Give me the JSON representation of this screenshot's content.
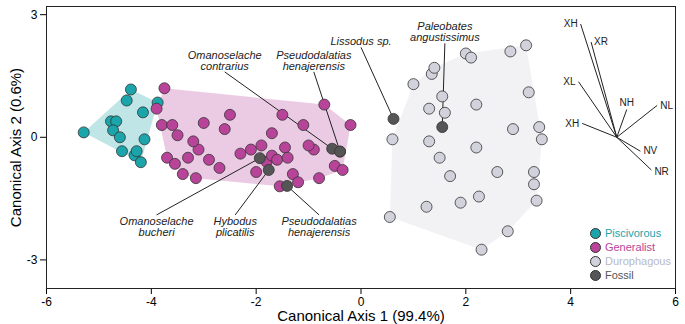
{
  "chart_data": {
    "type": "scatter",
    "xlabel": "Canonical Axis 1 (99.4%)",
    "ylabel": "Canonical Axis 2 (0.6%)",
    "xlim": [
      -6,
      6
    ],
    "ylim": [
      -3.7,
      3.2
    ],
    "xticks": [
      -6,
      -4,
      -2,
      0,
      2,
      4,
      6
    ],
    "yticks": [
      -3,
      0,
      3
    ],
    "legend": "bottom-right",
    "series": [
      {
        "name": "Piscivorous",
        "color": "#1ba4aa",
        "x": [
          -5.29,
          -4.77,
          -4.67,
          -4.73,
          -4.6,
          -4.56,
          -4.32,
          -4.2,
          -4.13,
          -4.16,
          -4.47,
          -4.39,
          -3.88,
          -4.28
        ],
        "y": [
          0.12,
          0.39,
          0.39,
          0.17,
          0.0,
          -0.34,
          -0.44,
          -0.61,
          -0.05,
          0.61,
          0.9,
          1.17,
          0.85,
          -0.34
        ]
      },
      {
        "name": "Generalist",
        "color": "#b8449a",
        "x": [
          -3.75,
          -3.9,
          -3.8,
          -3.6,
          -3.5,
          -3.7,
          -3.55,
          -3.3,
          -3.1,
          -3.15,
          -3.4,
          -3.2,
          -3.0,
          -2.9,
          -2.7,
          -2.6,
          -2.5,
          -2.3,
          -2.1,
          -1.9,
          -2.0,
          -1.8,
          -1.7,
          -1.6,
          -1.55,
          -1.45,
          -1.4,
          -1.3,
          -1.2,
          -1.5,
          -1.7,
          -1.1,
          -0.9,
          -0.8,
          -0.7,
          -0.5,
          -0.4,
          -0.2,
          -0.35,
          -1.0
        ],
        "y": [
          1.2,
          0.7,
          0.3,
          0.3,
          0.05,
          -0.5,
          -0.65,
          -0.5,
          -0.3,
          -1.0,
          -0.9,
          -0.1,
          0.35,
          -0.55,
          -0.75,
          0.2,
          0.55,
          -0.4,
          -0.3,
          -0.2,
          -0.85,
          -0.6,
          -0.45,
          -0.55,
          -1.2,
          -0.25,
          -0.5,
          -0.9,
          -1.1,
          0.55,
          0.1,
          0.3,
          -0.3,
          -1.0,
          0.8,
          -0.7,
          -0.35,
          0.3,
          -0.8,
          -0.2
        ]
      },
      {
        "name": "Durophagous",
        "color": "#d2d2dc",
        "x": [
          0.6,
          0.55,
          1.25,
          1.3,
          1.3,
          1.35,
          1.4,
          1.55,
          1.6,
          1.5,
          1.7,
          2.0,
          2.1,
          2.2,
          2.2,
          2.25,
          2.3,
          2.6,
          2.8,
          2.85,
          2.9,
          3.15,
          3.2,
          3.3,
          3.3,
          3.35,
          3.4,
          3.45,
          1.0,
          1.9
        ],
        "y": [
          -0.05,
          -1.95,
          -1.7,
          -0.1,
          0.7,
          1.55,
          1.7,
          1.0,
          0.6,
          -0.5,
          -0.95,
          2.05,
          1.95,
          0.8,
          -0.25,
          -1.45,
          -2.75,
          -0.85,
          -2.3,
          2.1,
          0.2,
          2.25,
          1.1,
          -0.85,
          -1.15,
          -1.55,
          0.25,
          -0.05,
          1.3,
          -1.6
        ]
      },
      {
        "name": "Fossil",
        "color": "#555555",
        "x": [
          -0.55,
          -0.4,
          0.62,
          1.55,
          -1.93,
          -1.76,
          -1.41
        ],
        "y": [
          -0.28,
          -0.35,
          0.45,
          0.25,
          -0.51,
          -0.8,
          -1.19
        ],
        "labels": [
          "Omanoselache\ncontrarius",
          "Pseudodalatias\nhenajerensis",
          "Lissodus sp.",
          "Paleobates\nangustissimus",
          "Omanoselache\nbucheri",
          "Hybodus\nplicatilis",
          "Pseudodalatias\nhenajerensis"
        ]
      }
    ],
    "vectors": [
      {
        "name": "XH",
        "dx": -0.69,
        "dy": 2.77
      },
      {
        "name": "XR",
        "dx": -0.49,
        "dy": 2.33
      },
      {
        "name": "XL",
        "dx": -0.73,
        "dy": 1.36
      },
      {
        "name": "NH",
        "dx": 0.19,
        "dy": 0.68
      },
      {
        "name": "NL",
        "dx": 0.77,
        "dy": 0.78
      },
      {
        "name": "XH",
        "dx": -0.66,
        "dy": 0.34
      },
      {
        "name": "NV",
        "dx": 0.45,
        "dy": -0.34
      },
      {
        "name": "NR",
        "dx": 0.66,
        "dy": -0.8
      }
    ]
  }
}
